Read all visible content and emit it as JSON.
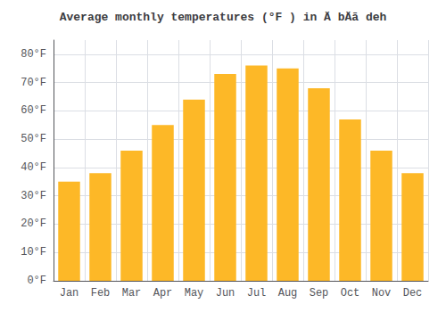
{
  "chart_data": {
    "type": "bar",
    "title": "Average monthly temperatures (°F ) in Ä bÄā deh",
    "categories": [
      "Jan",
      "Feb",
      "Mar",
      "Apr",
      "May",
      "Jun",
      "Jul",
      "Aug",
      "Sep",
      "Oct",
      "Nov",
      "Dec"
    ],
    "values": [
      35,
      38,
      46,
      55,
      64,
      73,
      76,
      75,
      68,
      57,
      46,
      38
    ],
    "color": "#FDB827",
    "ylim": [
      0,
      85
    ],
    "yticks": [
      {
        "value": 0,
        "label": "0°F"
      },
      {
        "value": 10,
        "label": "10°F"
      },
      {
        "value": 20,
        "label": "20°F"
      },
      {
        "value": 30,
        "label": "30°F"
      },
      {
        "value": 40,
        "label": "40°F"
      },
      {
        "value": 50,
        "label": "50°F"
      },
      {
        "value": 60,
        "label": "60°F"
      },
      {
        "value": 70,
        "label": "70°F"
      },
      {
        "value": 80,
        "label": "80°F"
      }
    ],
    "grid": true
  }
}
